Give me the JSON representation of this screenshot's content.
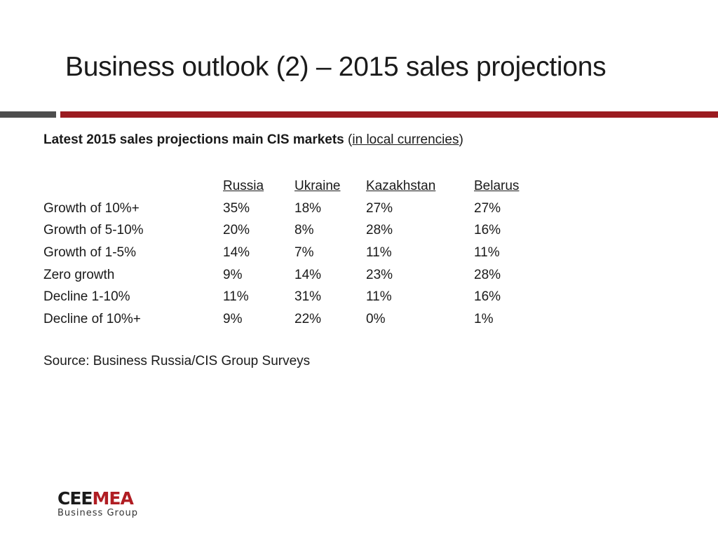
{
  "slide": {
    "title": "Business outlook (2) – 2015 sales projections"
  },
  "subtitle": {
    "bold": "Latest 2015 sales projections main CIS markets",
    "open": " (",
    "underlined": "in local currencies",
    "close": ")"
  },
  "table": {
    "columns": [
      "",
      "Russia",
      "Ukraine",
      "Kazakhstan",
      "Belarus"
    ],
    "rows": [
      [
        "Growth of 10%+",
        "35%",
        "18%",
        "27%",
        "27%"
      ],
      [
        "Growth of 5-10%",
        "20%",
        "8%",
        "28%",
        "16%"
      ],
      [
        "Growth of 1-5%",
        "14%",
        "7%",
        "11%",
        "11%"
      ],
      [
        "Zero growth",
        "9%",
        "14%",
        "23%",
        "28%"
      ],
      [
        "Decline 1-10%",
        "11%",
        "31%",
        "11%",
        "16%"
      ],
      [
        "Decline of 10%+",
        "9%",
        "22%",
        "0%",
        "1%"
      ]
    ]
  },
  "source": "Source: Business Russia/CIS Group Surveys",
  "logo": {
    "brand_dark": "CEE",
    "brand_red": "MEA",
    "tagline": "Business Group"
  },
  "colors": {
    "accent_red": "#9b1b20",
    "rule_gray": "#4d4d4d"
  }
}
